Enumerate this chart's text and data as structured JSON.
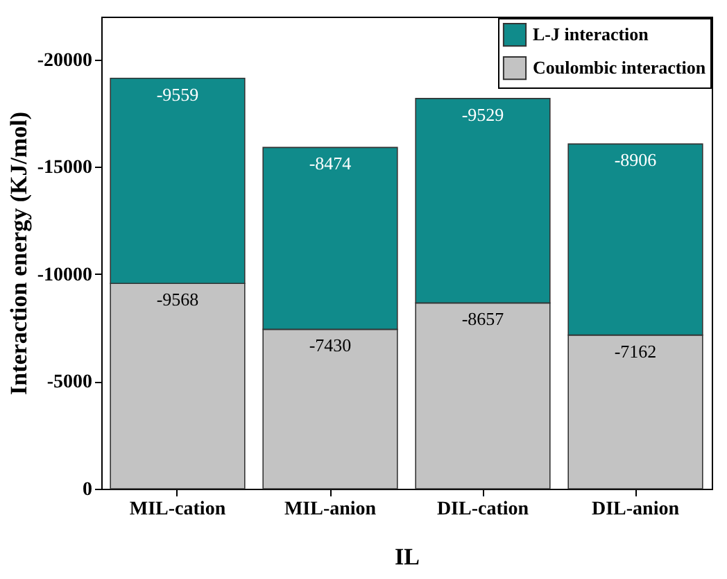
{
  "chart_data": {
    "type": "bar",
    "stacked": true,
    "xlabel": "IL",
    "ylabel": "Interaction energy (KJ/mol)",
    "categories": [
      "MIL-cation",
      "MIL-anion",
      "DIL-cation",
      "DIL-anion"
    ],
    "series": [
      {
        "name": "Coulombic interaction",
        "color": "#c3c3c3",
        "values": [
          -9568,
          -7430,
          -8657,
          -7162
        ]
      },
      {
        "name": "L-J  interaction",
        "color": "#108b8b",
        "values": [
          -9559,
          -8474,
          -9529,
          -8906
        ]
      }
    ],
    "ylim": [
      0,
      -22000
    ],
    "yticks": [
      0,
      -5000,
      -10000,
      -15000,
      -20000
    ],
    "grid": false,
    "legend": "top right",
    "data_labels": true
  }
}
